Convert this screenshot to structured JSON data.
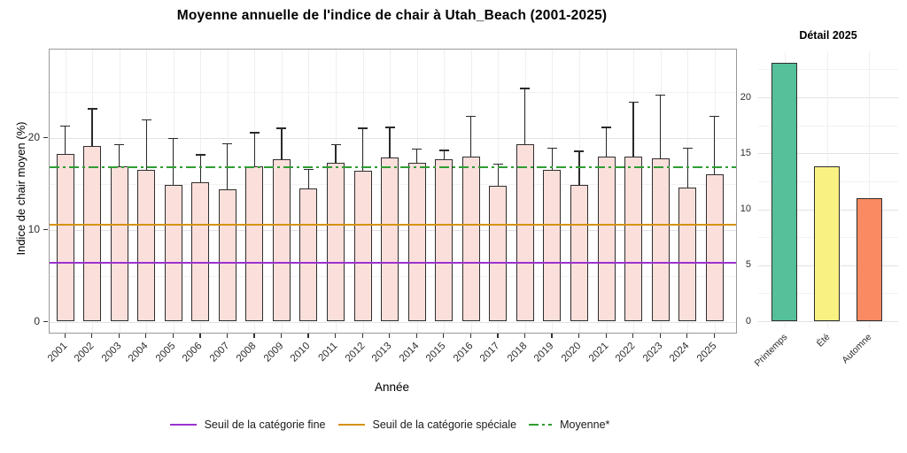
{
  "page_title": "Moyenne annuelle de l'indice de chair à Utah_Beach (2001-2025)",
  "colors": {
    "bar_fill": "#FBDFDB",
    "bar_border": "#2E2E2E",
    "error_bar": "#2A2A2A",
    "threshold_fine": "#9A32CE",
    "threshold_speciale": "#D4920B",
    "mean_line": "#2E9E32",
    "detail_printemps": "#55C09A",
    "detail_ete": "#F9F283",
    "detail_automne": "#FA8A62"
  },
  "chart_data": [
    {
      "type": "bar",
      "title": "Moyenne annuelle de l'indice de chair à Utah_Beach (2001-2025)",
      "xlabel": "Année",
      "ylabel": "Indice de chair moyen (%)",
      "categories": [
        "2001",
        "2002",
        "2003",
        "2004",
        "2005",
        "2006",
        "2007",
        "2008",
        "2009",
        "2010",
        "2011",
        "2012",
        "2013",
        "2014",
        "2015",
        "2016",
        "2017",
        "2018",
        "2019",
        "2020",
        "2021",
        "2022",
        "2023",
        "2024",
        "2025"
      ],
      "values": [
        18.2,
        19.1,
        16.9,
        16.5,
        14.9,
        15.1,
        14.4,
        16.9,
        17.6,
        14.5,
        17.3,
        16.4,
        17.8,
        17.3,
        17.6,
        17.9,
        14.8,
        19.3,
        16.5,
        14.9,
        17.9,
        17.9,
        17.7,
        14.6,
        16.0
      ],
      "error_top": [
        21.3,
        23.2,
        19.3,
        22.0,
        20.0,
        18.2,
        19.4,
        20.6,
        21.1,
        16.6,
        19.3,
        21.1,
        21.2,
        18.8,
        18.7,
        22.4,
        17.2,
        25.4,
        18.9,
        18.6,
        21.2,
        23.9,
        24.7,
        18.9,
        22.4
      ],
      "ylim": [
        0,
        29.5
      ],
      "yticks": [
        0,
        10,
        20
      ],
      "grid": true,
      "legend_position": "bottom",
      "reference_lines": [
        {
          "label": "Seuil de la catégorie fine",
          "value": 6.4,
          "color": "#9A32CE",
          "style": "solid"
        },
        {
          "label": "Seuil de la catégorie spéciale",
          "value": 10.5,
          "color": "#D4920B",
          "style": "solid"
        },
        {
          "label": "Moyenne*",
          "value": 16.8,
          "color": "#2E9E32",
          "style": "dashdot"
        }
      ]
    },
    {
      "type": "bar",
      "title": "Détail 2025",
      "categories": [
        "Printemps",
        "Été",
        "Automne"
      ],
      "values": [
        23.1,
        13.8,
        11.0
      ],
      "colors": [
        "#55C09A",
        "#F9F283",
        "#FA8A62"
      ],
      "ylim": [
        0,
        24.1
      ],
      "yticks": [
        0,
        5,
        10,
        15,
        20
      ],
      "grid": true
    }
  ]
}
